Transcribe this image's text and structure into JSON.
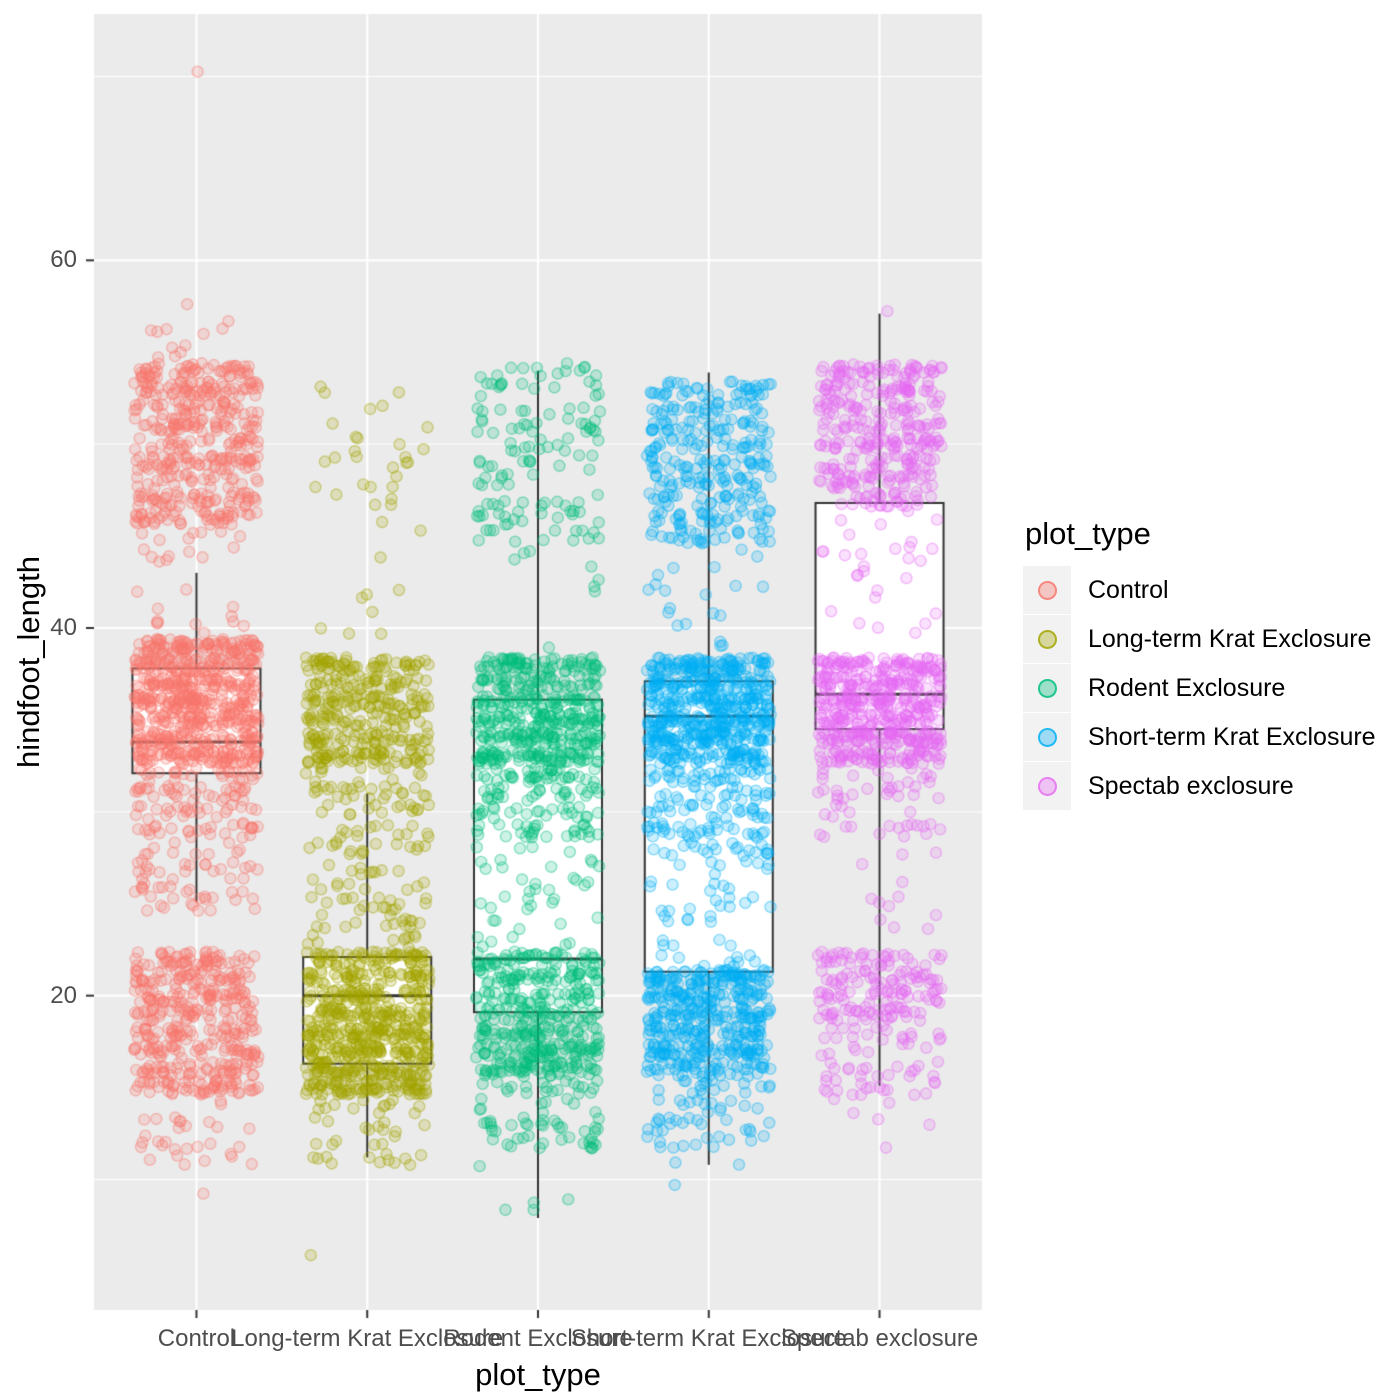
{
  "y_axis": {
    "title": "hindfoot_length",
    "tick_labels": [
      "20",
      "40",
      "60"
    ],
    "major_ticks": [
      20,
      40,
      60
    ],
    "minor_ticks": [
      10,
      30,
      50,
      70
    ],
    "range": [
      2.9,
      73.4
    ],
    "tick_color": "#4d4d4d"
  },
  "x_axis": {
    "title": "plot_type",
    "categories": [
      "Control",
      "Long-term Krat Exclosure",
      "Rodent Exclosure",
      "Short-term Krat Exclosure",
      "Spectab exclosure"
    ]
  },
  "panel": {
    "background": "#EBEBEB",
    "grid_color": "#FFFFFF",
    "box_outline_color": "#333333",
    "box_fill_color": "#FFFFFF"
  },
  "legend": {
    "title": "plot_type",
    "key_background": "#F2F2F2",
    "items": [
      {
        "label": "Control",
        "color": "#F8766D"
      },
      {
        "label": "Long-term Krat Exclosure",
        "color": "#A3A500"
      },
      {
        "label": "Rodent Exclosure",
        "color": "#00BF7D"
      },
      {
        "label": "Short-term Krat Exclosure",
        "color": "#00B0F6"
      },
      {
        "label": "Spectab exclosure",
        "color": "#E76BF3"
      }
    ]
  },
  "chart_data": {
    "type": "boxplot+jitter",
    "title": "",
    "xlabel": "plot_type",
    "ylabel": "hindfoot_length",
    "ylim": [
      2.9,
      73.4
    ],
    "grid": true,
    "legend_position": "right",
    "categories": [
      "Control",
      "Long-term Krat Exclosure",
      "Rodent Exclosure",
      "Short-term Krat Exclosure",
      "Spectab exclosure"
    ],
    "series": [
      {
        "name": "Control",
        "color": "#F8766D",
        "box": {
          "lower_whisker": 25.1,
          "q1": 32.1,
          "median": 33.8,
          "q3": 37.8,
          "upper_whisker": 43.0
        },
        "point_clusters": [
          {
            "lo": 70,
            "hi": 70,
            "n": 1,
            "jx": 3
          },
          {
            "lo": 57,
            "hi": 58,
            "n": 2
          },
          {
            "lo": 55,
            "hi": 56,
            "n": 10
          },
          {
            "lo": 46,
            "hi": 54,
            "n": 440
          },
          {
            "lo": 44,
            "hi": 45,
            "n": 15
          },
          {
            "lo": 40,
            "hi": 42,
            "n": 12
          },
          {
            "lo": 33,
            "hi": 39,
            "n": 650
          },
          {
            "lo": 29,
            "hi": 32,
            "n": 110
          },
          {
            "lo": 25,
            "hi": 28,
            "n": 60
          },
          {
            "lo": 15,
            "hi": 22,
            "n": 430
          },
          {
            "lo": 11,
            "hi": 14,
            "n": 30
          },
          {
            "lo": 9,
            "hi": 9,
            "n": 1
          }
        ]
      },
      {
        "name": "Long-term Krat Exclosure",
        "color": "#A3A500",
        "box": {
          "lower_whisker": 11.2,
          "q1": 16.3,
          "median": 20.0,
          "q3": 22.1,
          "upper_whisker": 31.0
        },
        "point_clusters": [
          {
            "lo": 47,
            "hi": 53,
            "n": 28
          },
          {
            "lo": 40,
            "hi": 46,
            "n": 10
          },
          {
            "lo": 33,
            "hi": 38,
            "n": 330
          },
          {
            "lo": 28,
            "hi": 32,
            "n": 80
          },
          {
            "lo": 23,
            "hi": 27,
            "n": 60
          },
          {
            "lo": 19,
            "hi": 22,
            "n": 270
          },
          {
            "lo": 15,
            "hi": 18,
            "n": 360
          },
          {
            "lo": 11,
            "hi": 14,
            "n": 40
          },
          {
            "lo": 6,
            "hi": 6,
            "n": 1
          }
        ]
      },
      {
        "name": "Rodent Exclosure",
        "color": "#00BF7D",
        "box": {
          "lower_whisker": 7.9,
          "q1": 19.1,
          "median": 22.0,
          "q3": 36.1,
          "upper_whisker": 54.0
        },
        "point_clusters": [
          {
            "lo": 45,
            "hi": 54,
            "n": 130
          },
          {
            "lo": 39,
            "hi": 44,
            "n": 8
          },
          {
            "lo": 33,
            "hi": 38,
            "n": 430
          },
          {
            "lo": 29,
            "hi": 32,
            "n": 120
          },
          {
            "lo": 23,
            "hi": 28,
            "n": 40
          },
          {
            "lo": 16,
            "hi": 22,
            "n": 400
          },
          {
            "lo": 12,
            "hi": 15,
            "n": 70
          },
          {
            "lo": 8,
            "hi": 11,
            "n": 5
          }
        ]
      },
      {
        "name": "Short-term Krat Exclosure",
        "color": "#00B0F6",
        "box": {
          "lower_whisker": 10.8,
          "q1": 21.3,
          "median": 35.2,
          "q3": 37.1,
          "upper_whisker": 53.9
        },
        "point_clusters": [
          {
            "lo": 45,
            "hi": 53,
            "n": 300
          },
          {
            "lo": 39,
            "hi": 44,
            "n": 20
          },
          {
            "lo": 33,
            "hi": 38,
            "n": 560
          },
          {
            "lo": 28,
            "hi": 32,
            "n": 140
          },
          {
            "lo": 22,
            "hi": 27,
            "n": 45
          },
          {
            "lo": 16,
            "hi": 21,
            "n": 430
          },
          {
            "lo": 12,
            "hi": 15,
            "n": 60
          },
          {
            "lo": 10,
            "hi": 11,
            "n": 3
          }
        ]
      },
      {
        "name": "Spectab exclosure",
        "color": "#E76BF3",
        "box": {
          "lower_whisker": 15.1,
          "q1": 34.5,
          "median": 36.4,
          "q3": 46.8,
          "upper_whisker": 57.1
        },
        "point_clusters": [
          {
            "lo": 57,
            "hi": 57,
            "n": 1,
            "jx": 8
          },
          {
            "lo": 47,
            "hi": 54,
            "n": 340
          },
          {
            "lo": 40,
            "hi": 46,
            "n": 28
          },
          {
            "lo": 33,
            "hi": 38,
            "n": 490
          },
          {
            "lo": 29,
            "hi": 32,
            "n": 50
          },
          {
            "lo": 23,
            "hi": 28,
            "n": 12
          },
          {
            "lo": 19,
            "hi": 22,
            "n": 150
          },
          {
            "lo": 15,
            "hi": 18,
            "n": 60
          },
          {
            "lo": 12,
            "hi": 14,
            "n": 6
          }
        ]
      }
    ]
  }
}
